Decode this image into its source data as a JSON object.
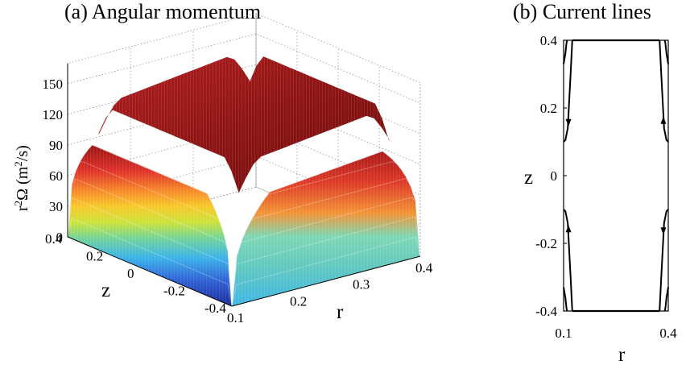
{
  "panel_a": {
    "title": "(a) Angular momentum"
  },
  "panel_b": {
    "title": "(b) Current lines"
  },
  "chart_data": [
    {
      "type": "surface",
      "title": "(a) Angular momentum",
      "xlabel": "r",
      "ylabel": "z",
      "zlabel": "r²Ω (m²/s)",
      "zlabel_base": "r",
      "zlabel_sup1": "2",
      "zlabel_mid": "Ω (m",
      "zlabel_sup2": "2",
      "zlabel_end": "/s)",
      "xlim": [
        0.1,
        0.4
      ],
      "ylim": [
        -0.4,
        0.4
      ],
      "zlim": [
        0,
        150
      ],
      "xticks": [
        "0.1",
        "0.2",
        "0.3",
        "0.4"
      ],
      "yticks": [
        "0.4",
        "0.2",
        "0",
        "-0.2",
        "-0.4"
      ],
      "zticks": [
        "0",
        "30",
        "60",
        "90",
        "120",
        "150"
      ],
      "colormap": "jet",
      "grid": true,
      "r_samples": [
        0.1,
        0.15,
        0.2,
        0.25,
        0.3,
        0.35,
        0.4
      ],
      "z_samples": [
        -0.4,
        -0.2,
        0,
        0.2,
        0.4
      ],
      "values": [
        [
          0,
          0,
          0,
          0,
          0,
          0,
          0
        ],
        [
          0,
          98,
          102,
          106,
          110,
          112,
          0
        ],
        [
          0,
          118,
          124,
          128,
          130,
          132,
          0
        ],
        [
          0,
          135,
          140,
          142,
          145,
          146,
          0
        ],
        [
          0,
          0,
          0,
          0,
          0,
          0,
          0
        ]
      ]
    },
    {
      "type": "line",
      "title": "(b) Current lines",
      "xlabel": "r",
      "ylabel": "z",
      "xlim": [
        0.1,
        0.4
      ],
      "ylim": [
        -0.4,
        0.4
      ],
      "xticks": [
        "0.1",
        "0.4"
      ],
      "yticks": [
        "0.4",
        "0.2",
        "0",
        "-0.2",
        "-0.4"
      ],
      "series": [
        {
          "points": [
            [
              0.125,
              0.4
            ],
            [
              0.12,
              0.3
            ],
            [
              0.115,
              0.2
            ],
            [
              0.112,
              0.14
            ],
            [
              0.105,
              0.105
            ],
            [
              0.1,
              0.1
            ]
          ]
        },
        {
          "points": [
            [
              0.375,
              0.4
            ],
            [
              0.38,
              0.3
            ],
            [
              0.385,
              0.2
            ],
            [
              0.388,
              0.14
            ],
            [
              0.395,
              0.105
            ],
            [
              0.4,
              0.1
            ]
          ]
        },
        {
          "points": [
            [
              0.125,
              -0.4
            ],
            [
              0.12,
              -0.3
            ],
            [
              0.115,
              -0.2
            ],
            [
              0.112,
              -0.14
            ],
            [
              0.105,
              -0.105
            ],
            [
              0.1,
              -0.1
            ]
          ]
        },
        {
          "points": [
            [
              0.375,
              -0.4
            ],
            [
              0.38,
              -0.3
            ],
            [
              0.385,
              -0.2
            ],
            [
              0.388,
              -0.14
            ],
            [
              0.395,
              -0.105
            ],
            [
              0.4,
              -0.1
            ]
          ]
        },
        {
          "points": [
            [
              0.1,
              0.33
            ],
            [
              0.105,
              0.36
            ],
            [
              0.108,
              0.39
            ],
            [
              0.11,
              0.4
            ]
          ]
        },
        {
          "points": [
            [
              0.4,
              0.33
            ],
            [
              0.395,
              0.36
            ],
            [
              0.392,
              0.39
            ],
            [
              0.39,
              0.4
            ]
          ]
        },
        {
          "points": [
            [
              0.1,
              -0.33
            ],
            [
              0.105,
              -0.36
            ],
            [
              0.108,
              -0.39
            ],
            [
              0.11,
              -0.4
            ]
          ]
        },
        {
          "points": [
            [
              0.4,
              -0.33
            ],
            [
              0.395,
              -0.36
            ],
            [
              0.392,
              -0.39
            ],
            [
              0.39,
              -0.4
            ]
          ]
        }
      ],
      "arrows": [
        {
          "r": 0.114,
          "z": 0.16,
          "dir": "down"
        },
        {
          "r": 0.386,
          "z": 0.16,
          "dir": "up"
        },
        {
          "r": 0.114,
          "z": -0.16,
          "dir": "up"
        },
        {
          "r": 0.386,
          "z": -0.16,
          "dir": "down"
        }
      ]
    }
  ]
}
